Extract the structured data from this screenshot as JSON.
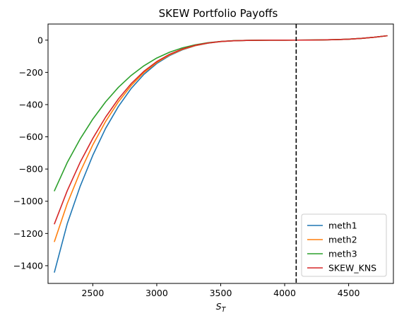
{
  "chart_data": {
    "type": "line",
    "title": "SKEW Portfolio Payoffs",
    "xlabel": "S_T",
    "xlabel_base": "S",
    "xlabel_sub": "T",
    "ylabel": "",
    "xlim": [
      2150,
      4850
    ],
    "ylim": [
      -1510,
      100
    ],
    "x_ticks": [
      2500,
      3000,
      3500,
      4000,
      4500
    ],
    "y_ticks": [
      0,
      -200,
      -400,
      -600,
      -800,
      -1000,
      -1200,
      -1400
    ],
    "x_tick_labels": [
      "2500",
      "3000",
      "3500",
      "4000",
      "4500"
    ],
    "y_tick_labels": [
      "0",
      "−200",
      "−400",
      "−600",
      "−800",
      "−1000",
      "−1200",
      "−1400"
    ],
    "vline": {
      "x": 4090,
      "style": "dashed",
      "color": "#000000"
    },
    "legend_position": "lower-right",
    "grid": false,
    "x": [
      2200,
      2300,
      2400,
      2500,
      2600,
      2700,
      2800,
      2900,
      3000,
      3100,
      3200,
      3300,
      3400,
      3500,
      3600,
      3700,
      3800,
      3900,
      4000,
      4100,
      4200,
      4300,
      4400,
      4500,
      4600,
      4700,
      4800
    ],
    "series": [
      {
        "name": "meth1",
        "color": "#1f77b4",
        "values": [
          -1440,
          -1140,
          -910,
          -715,
          -548,
          -412,
          -300,
          -212,
          -145,
          -96,
          -60,
          -35,
          -19,
          -9,
          -4,
          -1.5,
          -0.5,
          -0.2,
          0,
          0.2,
          0.5,
          1.5,
          3,
          6,
          11,
          18,
          27
        ]
      },
      {
        "name": "meth2",
        "color": "#ff7f0e",
        "values": [
          -1250,
          -1015,
          -820,
          -650,
          -505,
          -383,
          -282,
          -201,
          -139,
          -92,
          -58,
          -34,
          -18.5,
          -9,
          -4,
          -1.5,
          -0.5,
          -0.2,
          0,
          0.2,
          0.5,
          1.5,
          3,
          6,
          11,
          18,
          27
        ]
      },
      {
        "name": "meth3",
        "color": "#2ca02c",
        "values": [
          -935,
          -760,
          -615,
          -490,
          -383,
          -293,
          -219,
          -159,
          -111,
          -75,
          -48,
          -29,
          -16,
          -8,
          -3.5,
          -1.5,
          -0.5,
          -0.2,
          0,
          0.2,
          0.5,
          1.5,
          3,
          6,
          11,
          18,
          27
        ]
      },
      {
        "name": "SKEW_KNS",
        "color": "#d62728",
        "values": [
          -1140,
          -935,
          -760,
          -610,
          -478,
          -365,
          -270,
          -193,
          -133,
          -88,
          -55,
          -32,
          -17.5,
          -8.5,
          -4,
          -1.5,
          -0.5,
          -0.2,
          0,
          0.2,
          0.5,
          1.5,
          3,
          6,
          11,
          18,
          27
        ]
      }
    ]
  }
}
